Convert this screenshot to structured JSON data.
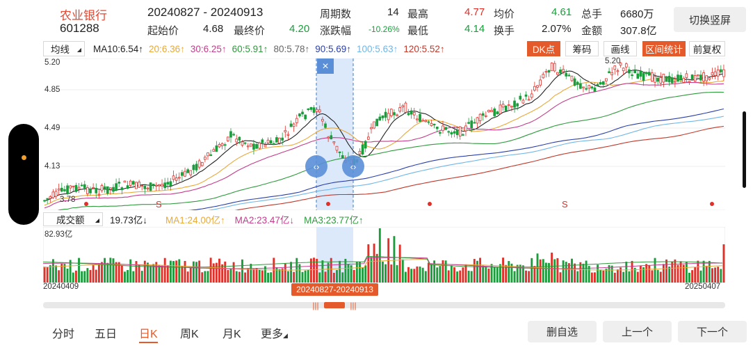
{
  "header": {
    "stock_name": "农业银行",
    "stock_code": "601288",
    "date_range": "20240827 - 20240913",
    "start_price_label": "起始价",
    "start_price": "4.68",
    "end_price_label": "最终价",
    "end_price": "4.20",
    "periods_label": "周期数",
    "periods": "14",
    "change_label": "涨跌幅",
    "change": "-10.26%",
    "high_label": "最高",
    "high": "4.77",
    "low_label": "最低",
    "low": "4.14",
    "avg_label": "均价",
    "avg": "4.61",
    "turnover_label": "换手",
    "turnover": "2.07%",
    "vol_label": "总手",
    "vol": "6680万",
    "amount_label": "金额",
    "amount": "307.8亿",
    "switch_button": "切换竖屏"
  },
  "ma_bar": {
    "selector": "均线",
    "items": [
      {
        "text": "MA10:6.54↑",
        "color": "#222222"
      },
      {
        "text": "20:6.36↑",
        "color": "#e8a93a"
      },
      {
        "text": "30:6.25↑",
        "color": "#c43c8c"
      },
      {
        "text": "60:5.91↑",
        "color": "#2e9a3c"
      },
      {
        "text": "80:5.78↑",
        "color": "#666666"
      },
      {
        "text": "90:5.69↑",
        "color": "#2a3fa8"
      },
      {
        "text": "100:5.63↑",
        "color": "#6fb6e8"
      },
      {
        "text": "120:5.52↑",
        "color": "#c0392b"
      }
    ],
    "tools": [
      "DK点",
      "筹码",
      "画线",
      "区间统计",
      "前复权"
    ]
  },
  "kline": {
    "y_labels": [
      "5.20",
      "4.85",
      "4.49",
      "4.13",
      "3.78"
    ],
    "low_marker": "3.78",
    "high_marker": "5.20",
    "signal_s": "S",
    "close_icon": "×"
  },
  "volume": {
    "selector": "成交额",
    "current": "19.73亿↓",
    "ma1": "MA1:24.00亿↑",
    "ma2": "MA2:23.47亿↓",
    "ma3": "MA3:23.77亿↑",
    "max_label": "82.93亿",
    "ma_colors": [
      "#e8a93a",
      "#c43c8c",
      "#2e9a3c"
    ]
  },
  "timeline": {
    "start_date": "20240409",
    "end_date": "20250407",
    "selected_range": "20240827-20240913"
  },
  "tabs": [
    "分时",
    "五日",
    "日K",
    "周K",
    "月K",
    "更多"
  ],
  "active_tab": "日K",
  "buttons": {
    "remove": "删自选",
    "prev": "上一个",
    "next": "下一个"
  },
  "colors": {
    "up": "#e0302a",
    "down": "#1a9e3c",
    "accent": "#e55a2b",
    "selection": "#dce9fb"
  }
}
